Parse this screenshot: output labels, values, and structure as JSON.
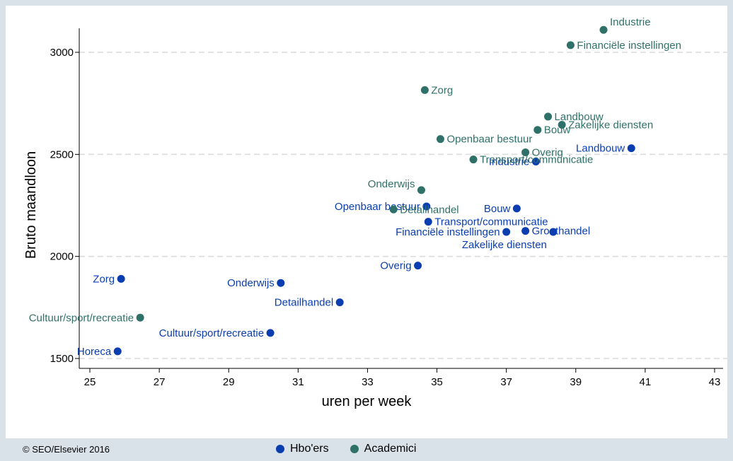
{
  "chart_data": {
    "type": "scatter",
    "xlabel": "uren per week",
    "ylabel": "Bruto maandloon",
    "xlim": [
      24.6,
      43.2
    ],
    "ylim": [
      1450,
      3200
    ],
    "xticks": [
      25,
      27,
      29,
      31,
      33,
      35,
      37,
      39,
      41,
      43
    ],
    "yticks": [
      1500,
      2000,
      2500,
      3000
    ],
    "grid": "horizontal dashed",
    "legend_position": "bottom",
    "series": [
      {
        "name": "Hbo'ers",
        "color": "#0a3eb0",
        "points": [
          {
            "label": "Landbouw",
            "x": 40.6,
            "y": 2530,
            "anchor": "left"
          },
          {
            "label": "Industrie",
            "x": 37.85,
            "y": 2465,
            "anchor": "left"
          },
          {
            "label": "Bouw",
            "x": 37.3,
            "y": 2235,
            "anchor": "left"
          },
          {
            "label": "Openbaar bestuur",
            "x": 34.7,
            "y": 2245,
            "anchor": "left"
          },
          {
            "label": "Transport/communicatie",
            "x": 34.75,
            "y": 2170,
            "anchor": "right"
          },
          {
            "label": "Financiële instellingen",
            "x": 37.0,
            "y": 2120,
            "anchor": "left"
          },
          {
            "label": "Groothandel",
            "x": 37.55,
            "y": 2125,
            "anchor": "right"
          },
          {
            "label": "Zakelijke diensten",
            "x": 38.35,
            "y": 2120,
            "anchor": "leftbelow"
          },
          {
            "label": "Overig",
            "x": 34.45,
            "y": 1955,
            "anchor": "left"
          },
          {
            "label": "Zorg",
            "x": 25.9,
            "y": 1890,
            "anchor": "left"
          },
          {
            "label": "Onderwijs",
            "x": 30.5,
            "y": 1870,
            "anchor": "left"
          },
          {
            "label": "Detailhandel",
            "x": 32.2,
            "y": 1775,
            "anchor": "left"
          },
          {
            "label": "Cultuur/sport/recreatie",
            "x": 30.2,
            "y": 1625,
            "anchor": "left"
          },
          {
            "label": "Horeca",
            "x": 25.8,
            "y": 1535,
            "anchor": "left"
          }
        ]
      },
      {
        "name": "Academici",
        "color": "#2f7168",
        "points": [
          {
            "label": "Industrie",
            "x": 39.8,
            "y": 3110,
            "anchor": "rightabove"
          },
          {
            "label": "Financiële instellingen",
            "x": 38.85,
            "y": 3035,
            "anchor": "right"
          },
          {
            "label": "Zorg",
            "x": 34.65,
            "y": 2815,
            "anchor": "right"
          },
          {
            "label": "Landbouw",
            "x": 38.2,
            "y": 2685,
            "anchor": "right"
          },
          {
            "label": "Zakelijke diensten",
            "x": 38.6,
            "y": 2645,
            "anchor": "right"
          },
          {
            "label": "Bouw",
            "x": 37.9,
            "y": 2620,
            "anchor": "right"
          },
          {
            "label": "Openbaar bestuur",
            "x": 35.1,
            "y": 2575,
            "anchor": "right"
          },
          {
            "label": "Overig",
            "x": 37.55,
            "y": 2510,
            "anchor": "right"
          },
          {
            "label": "Transport/communicatie",
            "x": 36.05,
            "y": 2475,
            "anchor": "right"
          },
          {
            "label": "Onderwijs",
            "x": 34.55,
            "y": 2325,
            "anchor": "leftabove"
          },
          {
            "label": "Detailhandel",
            "x": 33.75,
            "y": 2230,
            "anchor": "right"
          },
          {
            "label": "Cultuur/sport/recreatie",
            "x": 26.45,
            "y": 1700,
            "anchor": "left"
          }
        ]
      }
    ]
  },
  "footer": {
    "credit": "© SEO/Elsevier 2016"
  },
  "legend": {
    "items": [
      {
        "label": "Hbo'ers",
        "color": "#0a3eb0"
      },
      {
        "label": "Academici",
        "color": "#2f7168"
      }
    ]
  }
}
